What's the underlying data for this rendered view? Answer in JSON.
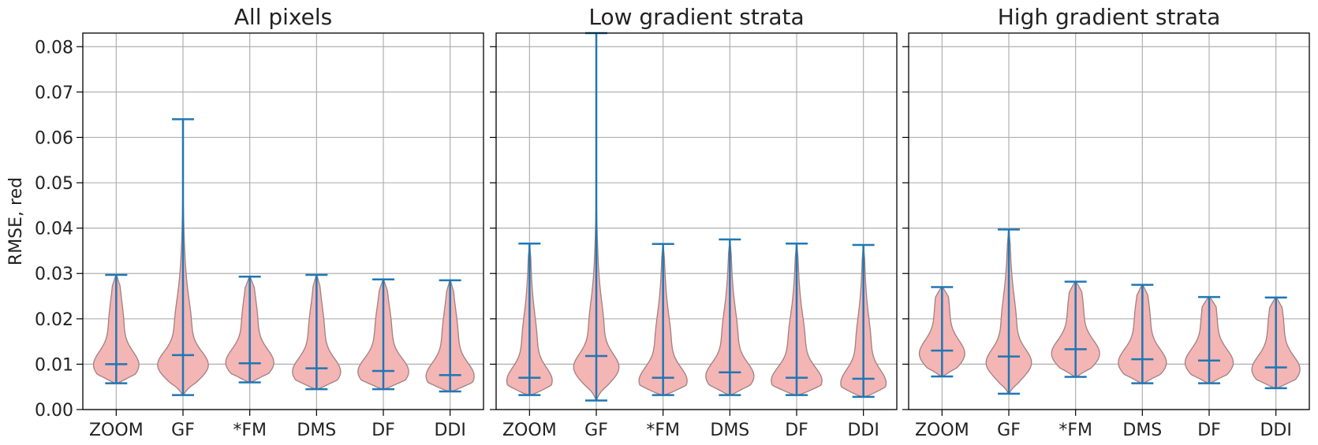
{
  "colors": {
    "violin_fill": "#f4b5b5",
    "violin_edge": "#a08080",
    "marker": "#1f77b4",
    "grid": "#b0b0b0",
    "axis": "#000000"
  },
  "chart_data": [
    {
      "type": "violin",
      "title": "All pixels",
      "ylabel": "RMSE, red",
      "ylim": [
        0,
        0.083
      ],
      "yticks": [
        "0.00",
        "0.01",
        "0.02",
        "0.03",
        "0.04",
        "0.05",
        "0.06",
        "0.07",
        "0.08"
      ],
      "grid": true,
      "categories": [
        "ZOOM",
        "GF",
        "*FM",
        "DMS",
        "DF",
        "DDI"
      ],
      "series": [
        {
          "min": 0.0058,
          "median": 0.01,
          "max": 0.0297,
          "mode": 0.0095,
          "width": 0.85
        },
        {
          "min": 0.0032,
          "median": 0.012,
          "max": 0.064,
          "mode": 0.0095,
          "width": 0.95
        },
        {
          "min": 0.006,
          "median": 0.0102,
          "max": 0.0293,
          "mode": 0.01,
          "width": 0.9
        },
        {
          "min": 0.0045,
          "median": 0.0091,
          "max": 0.0297,
          "mode": 0.008,
          "width": 0.9
        },
        {
          "min": 0.0045,
          "median": 0.0085,
          "max": 0.0287,
          "mode": 0.008,
          "width": 0.95
        },
        {
          "min": 0.004,
          "median": 0.0076,
          "max": 0.0285,
          "mode": 0.007,
          "width": 0.9
        }
      ]
    },
    {
      "type": "violin",
      "title": "Low gradient strata",
      "ylabel": "",
      "ylim": [
        0,
        0.083
      ],
      "grid": true,
      "categories": [
        "ZOOM",
        "GF",
        "*FM",
        "DMS",
        "DF",
        "DDI"
      ],
      "series": [
        {
          "min": 0.0032,
          "median": 0.007,
          "max": 0.0366,
          "mode": 0.006,
          "width": 0.85
        },
        {
          "min": 0.002,
          "median": 0.0118,
          "max": 0.083,
          "mode": 0.009,
          "width": 0.85
        },
        {
          "min": 0.0032,
          "median": 0.007,
          "max": 0.0365,
          "mode": 0.006,
          "width": 0.9
        },
        {
          "min": 0.0032,
          "median": 0.0082,
          "max": 0.0375,
          "mode": 0.007,
          "width": 0.9
        },
        {
          "min": 0.0032,
          "median": 0.007,
          "max": 0.0366,
          "mode": 0.006,
          "width": 0.95
        },
        {
          "min": 0.0028,
          "median": 0.0068,
          "max": 0.0363,
          "mode": 0.0055,
          "width": 0.85
        }
      ]
    },
    {
      "type": "violin",
      "title": "High gradient strata",
      "ylabel": "",
      "ylim": [
        0,
        0.083
      ],
      "grid": true,
      "categories": [
        "ZOOM",
        "GF",
        "*FM",
        "DMS",
        "DF",
        "DDI"
      ],
      "series": [
        {
          "min": 0.0073,
          "median": 0.013,
          "max": 0.027,
          "mode": 0.012,
          "width": 0.85
        },
        {
          "min": 0.0035,
          "median": 0.0117,
          "max": 0.0397,
          "mode": 0.01,
          "width": 0.85
        },
        {
          "min": 0.0072,
          "median": 0.0133,
          "max": 0.0282,
          "mode": 0.012,
          "width": 0.9
        },
        {
          "min": 0.0058,
          "median": 0.0111,
          "max": 0.0275,
          "mode": 0.01,
          "width": 0.9
        },
        {
          "min": 0.0058,
          "median": 0.0108,
          "max": 0.0248,
          "mode": 0.01,
          "width": 0.9
        },
        {
          "min": 0.0047,
          "median": 0.0093,
          "max": 0.0247,
          "mode": 0.0085,
          "width": 0.9
        }
      ]
    }
  ]
}
